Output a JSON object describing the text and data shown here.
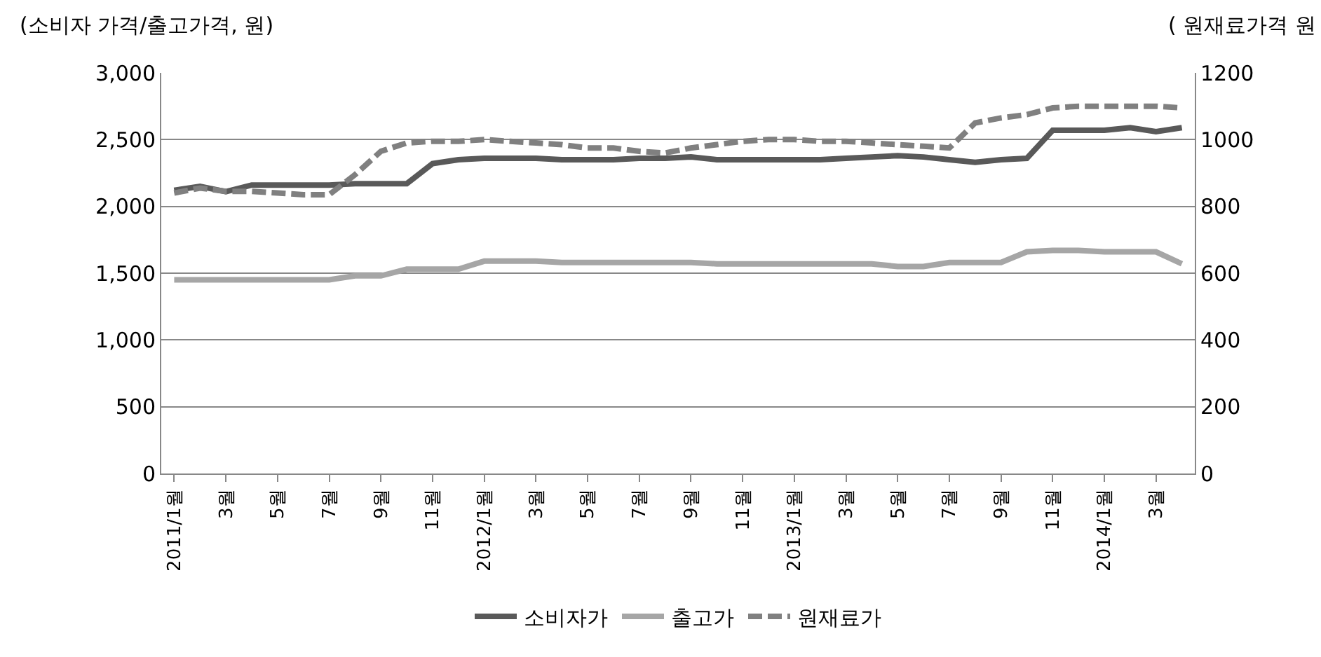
{
  "chart_data": {
    "type": "line",
    "ylabel": "(소비자 가격/출고가격, 원)",
    "y2label": "( 원재료가격 원",
    "categories": [
      "2011/1월",
      null,
      "3월",
      null,
      "5월",
      null,
      "7월",
      null,
      "9월",
      null,
      "11월",
      null,
      "2012/1월",
      null,
      "3월",
      null,
      "5월",
      null,
      "7월",
      null,
      "9월",
      null,
      "11월",
      null,
      "2013/1월",
      null,
      "3월",
      null,
      "5월",
      null,
      "7월",
      null,
      "9월",
      null,
      "11월",
      null,
      "2014/1월",
      null,
      "3월",
      null
    ],
    "series": [
      {
        "name": "소비자가",
        "color": "#595959",
        "line_style": "solid",
        "values": [
          2120,
          2150,
          2110,
          2160,
          2160,
          2160,
          2160,
          2170,
          2170,
          2170,
          2320,
          2350,
          2360,
          2360,
          2360,
          2350,
          2350,
          2350,
          2360,
          2360,
          2370,
          2350,
          2350,
          2350,
          2350,
          2350,
          2360,
          2370,
          2380,
          2370,
          2350,
          2330,
          2350,
          2360,
          2570,
          2570,
          2570,
          2590,
          2560,
          2590
        ]
      },
      {
        "name": "출고가",
        "color": "#a6a6a6",
        "line_style": "solid",
        "values": [
          1450,
          1450,
          1450,
          1450,
          1450,
          1450,
          1450,
          1480,
          1480,
          1530,
          1530,
          1530,
          1590,
          1590,
          1590,
          1580,
          1580,
          1580,
          1580,
          1580,
          1580,
          1570,
          1570,
          1570,
          1570,
          1570,
          1570,
          1570,
          1550,
          1550,
          1580,
          1580,
          1580,
          1660,
          1670,
          1670,
          1660,
          1660,
          1660,
          1570
        ]
      },
      {
        "name": "원재료가",
        "color": "#808080",
        "line_style": "dashed",
        "axis": "y2",
        "values": [
          840,
          855,
          845,
          845,
          840,
          835,
          835,
          895,
          965,
          990,
          995,
          995,
          1000,
          995,
          990,
          985,
          975,
          975,
          965,
          960,
          975,
          985,
          995,
          1000,
          1000,
          995,
          995,
          990,
          985,
          980,
          975,
          1050,
          1065,
          1075,
          1095,
          1100,
          1100,
          1100,
          1100,
          1095
        ]
      }
    ],
    "ylim": [
      0,
      3000
    ],
    "yticks": [
      {
        "value": 0,
        "label": "0"
      },
      {
        "value": 500,
        "label": "500"
      },
      {
        "value": 1000,
        "label": "1,000"
      },
      {
        "value": 1500,
        "label": "1,500"
      },
      {
        "value": 2000,
        "label": "2,000"
      },
      {
        "value": 2500,
        "label": "2,500"
      },
      {
        "value": 3000,
        "label": "3,000"
      }
    ],
    "y2lim": [
      0,
      1200
    ],
    "y2ticks": [
      0,
      200,
      400,
      600,
      800,
      1000,
      1200
    ],
    "grid": "y",
    "legend": "bottom",
    "marker": "none"
  }
}
